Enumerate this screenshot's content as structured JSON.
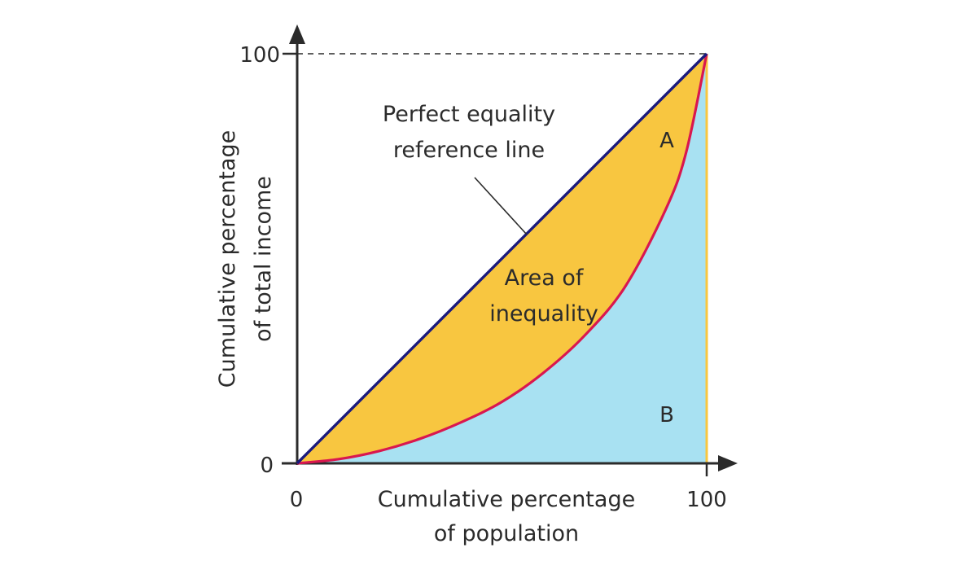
{
  "chart_data": {
    "type": "area",
    "x_axis": {
      "label_line1": "Cumulative percentage",
      "label_line2": "of population",
      "ticks": [
        "0",
        "100"
      ],
      "range": [
        0,
        100
      ]
    },
    "y_axis": {
      "label_line1": "Cumulative percentage",
      "label_line2": "of total income",
      "ticks": [
        "0",
        "100"
      ],
      "range": [
        0,
        100
      ]
    },
    "series": [
      {
        "name": "Perfect equality reference line",
        "x": [
          0,
          100
        ],
        "y": [
          0,
          100
        ]
      },
      {
        "x": [
          0,
          10,
          20,
          30,
          40,
          50,
          60,
          70,
          80,
          90,
          95,
          100
        ],
        "y": [
          0,
          1,
          3,
          6,
          10,
          15,
          22,
          31,
          43,
          62,
          76,
          100
        ]
      }
    ],
    "annotations": {
      "equality_line_line1": "Perfect equality",
      "equality_line_line2": "reference line",
      "inequality_area_line1": "Area of",
      "inequality_area_line2": "inequality",
      "region_a": "A",
      "region_b": "B"
    },
    "colors": {
      "equality_line": "#1a1a7e",
      "lorenz_curve": "#d9174f",
      "area_a": "#f8c640",
      "area_b": "#a8e1f2",
      "axis": "#2b2b2b",
      "right_edge": "#f8c640"
    }
  }
}
